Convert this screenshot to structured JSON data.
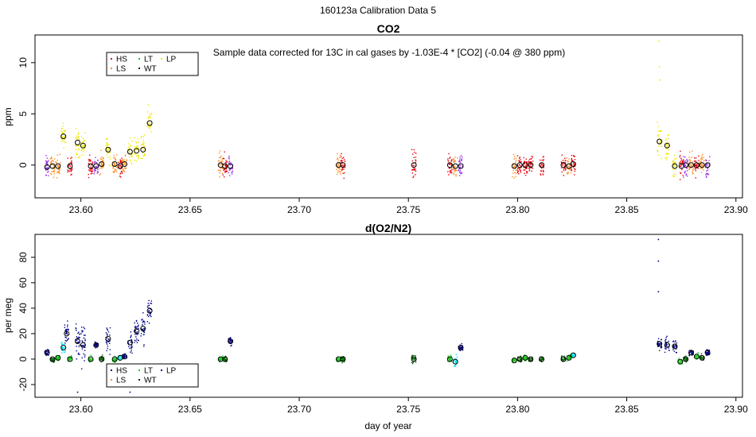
{
  "page_title": "160123a   Calibration Data 5",
  "colors": {
    "HS": "#e8000b",
    "LS": "#ff8c1a",
    "LT": "#1bcc1b",
    "WT": "#1f1f1f",
    "LP": "#f0e800",
    "purple": "#9b30e6",
    "navy": "#00008b",
    "cyan": "#00e5ee",
    "green_dark": "#006400"
  },
  "chart_data": [
    {
      "type": "scatter",
      "title": "CO2",
      "annotation": "Sample data corrected for 13C in cal gases by -1.03E-4 * [CO2] (-0.04 @ 380 ppm)",
      "xlabel": "",
      "ylabel": "ppm",
      "xlim": [
        23.579,
        23.903
      ],
      "ylim": [
        -3.2,
        12.7
      ],
      "xticks": [
        23.6,
        23.65,
        23.7,
        23.75,
        23.8,
        23.85,
        23.9
      ],
      "xtick_labels": [
        "23.60",
        "23.65",
        "23.70",
        "23.75",
        "23.80",
        "23.85",
        "23.90"
      ],
      "yticks": [
        0,
        5,
        10
      ],
      "ytick_labels": [
        "0",
        "5",
        "10"
      ],
      "legend": {
        "position": "top-left",
        "entries": [
          {
            "key": "HS",
            "label": "HS"
          },
          {
            "key": "LS",
            "label": "LS"
          },
          {
            "key": "LT",
            "label": "LT"
          },
          {
            "key": "WT",
            "label": "WT"
          },
          {
            "key": "LP",
            "label": "LP"
          }
        ]
      },
      "clusters": [
        {
          "x": 23.5845,
          "y": -0.2,
          "spread": 0.9,
          "color": "purple"
        },
        {
          "x": 23.587,
          "y": -0.1,
          "spread": 0.9,
          "color": "LS"
        },
        {
          "x": 23.5895,
          "y": -0.1,
          "spread": 0.9,
          "color": "LS"
        },
        {
          "x": 23.592,
          "y": 2.8,
          "spread": 1.0,
          "color": "LP"
        },
        {
          "x": 23.595,
          "y": -0.1,
          "spread": 0.9,
          "color": "HS"
        },
        {
          "x": 23.5985,
          "y": 2.2,
          "spread": 1.2,
          "color": "LP"
        },
        {
          "x": 23.601,
          "y": 1.9,
          "spread": 1.1,
          "color": "LP"
        },
        {
          "x": 23.6045,
          "y": -0.1,
          "spread": 0.9,
          "color": "HS"
        },
        {
          "x": 23.607,
          "y": -0.1,
          "spread": 0.9,
          "color": "purple"
        },
        {
          "x": 23.6095,
          "y": 0.1,
          "spread": 0.9,
          "color": "LS"
        },
        {
          "x": 23.6125,
          "y": 1.5,
          "spread": 1.1,
          "color": "LP"
        },
        {
          "x": 23.6155,
          "y": 0.1,
          "spread": 0.9,
          "color": "LS"
        },
        {
          "x": 23.618,
          "y": -0.1,
          "spread": 0.9,
          "color": "HS"
        },
        {
          "x": 23.62,
          "y": 0.1,
          "spread": 0.8,
          "color": "LS"
        },
        {
          "x": 23.6225,
          "y": 1.3,
          "spread": 1.1,
          "color": "LP"
        },
        {
          "x": 23.6255,
          "y": 1.4,
          "spread": 1.1,
          "color": "LP"
        },
        {
          "x": 23.6285,
          "y": 1.5,
          "spread": 1.1,
          "color": "LP"
        },
        {
          "x": 23.6315,
          "y": 4.1,
          "spread": 1.3,
          "color": "LP"
        },
        {
          "x": 23.664,
          "y": 0.0,
          "spread": 1.0,
          "color": "LS"
        },
        {
          "x": 23.666,
          "y": -0.1,
          "spread": 1.0,
          "color": "HS"
        },
        {
          "x": 23.6685,
          "y": -0.1,
          "spread": 0.9,
          "color": "purple"
        },
        {
          "x": 23.718,
          "y": 0.0,
          "spread": 0.9,
          "color": "LS"
        },
        {
          "x": 23.72,
          "y": 0.0,
          "spread": 1.0,
          "color": "HS"
        },
        {
          "x": 23.7525,
          "y": 0.0,
          "spread": 1.1,
          "color": "HS"
        },
        {
          "x": 23.769,
          "y": 0.0,
          "spread": 0.9,
          "color": "HS"
        },
        {
          "x": 23.7715,
          "y": -0.1,
          "spread": 0.9,
          "color": "LS"
        },
        {
          "x": 23.774,
          "y": -0.1,
          "spread": 0.9,
          "color": "purple"
        },
        {
          "x": 23.7985,
          "y": -0.1,
          "spread": 0.9,
          "color": "LS"
        },
        {
          "x": 23.801,
          "y": 0.0,
          "spread": 0.9,
          "color": "HS"
        },
        {
          "x": 23.8035,
          "y": 0.0,
          "spread": 0.9,
          "color": "HS"
        },
        {
          "x": 23.806,
          "y": 0.0,
          "spread": 0.9,
          "color": "HS"
        },
        {
          "x": 23.811,
          "y": 0.0,
          "spread": 1.0,
          "color": "HS"
        },
        {
          "x": 23.821,
          "y": 0.0,
          "spread": 0.9,
          "color": "HS"
        },
        {
          "x": 23.8235,
          "y": -0.1,
          "spread": 0.9,
          "color": "LS"
        },
        {
          "x": 23.8255,
          "y": 0.1,
          "spread": 0.9,
          "color": "HS"
        },
        {
          "x": 23.865,
          "y": 2.3,
          "spread": 1.5,
          "color": "LP"
        },
        {
          "x": 23.8685,
          "y": 1.9,
          "spread": 1.4,
          "color": "LP"
        },
        {
          "x": 23.872,
          "y": -0.1,
          "spread": 0.9,
          "color": "LP"
        },
        {
          "x": 23.875,
          "y": -0.1,
          "spread": 0.9,
          "color": "HS"
        },
        {
          "x": 23.877,
          "y": 0.0,
          "spread": 0.9,
          "color": "purple"
        },
        {
          "x": 23.8795,
          "y": 0.0,
          "spread": 0.9,
          "color": "LS"
        },
        {
          "x": 23.882,
          "y": 0.0,
          "spread": 0.9,
          "color": "HS"
        },
        {
          "x": 23.8845,
          "y": 0.0,
          "spread": 0.9,
          "color": "LS"
        },
        {
          "x": 23.887,
          "y": 0.0,
          "spread": 0.9,
          "color": "purple"
        }
      ],
      "outliers": [
        {
          "x": 23.8648,
          "y": 12.1,
          "color": "LP"
        },
        {
          "x": 23.865,
          "y": 9.6,
          "color": "LP"
        },
        {
          "x": 23.8652,
          "y": 8.3,
          "color": "LP"
        }
      ]
    },
    {
      "type": "scatter",
      "title": "d(O2/N2)",
      "xlabel": "day of year",
      "ylabel": "per meg",
      "xlim": [
        23.579,
        23.903
      ],
      "ylim": [
        -30,
        98
      ],
      "xticks": [
        23.6,
        23.65,
        23.7,
        23.75,
        23.8,
        23.85,
        23.9
      ],
      "xtick_labels": [
        "23.60",
        "23.65",
        "23.70",
        "23.75",
        "23.80",
        "23.85",
        "23.90"
      ],
      "yticks": [
        -20,
        0,
        20,
        40,
        60,
        80
      ],
      "ytick_labels": [
        "-20",
        "0",
        "20",
        "40",
        "60",
        "80"
      ],
      "legend": {
        "position": "bottom-left",
        "entries": [
          {
            "key": "HS",
            "label": "HS"
          },
          {
            "key": "LS",
            "label": "LS"
          },
          {
            "key": "LT",
            "label": "LT"
          },
          {
            "key": "WT",
            "label": "WT"
          },
          {
            "key": "LP",
            "label": "LP"
          }
        ]
      },
      "clusters": [
        {
          "x": 23.5845,
          "y": 5,
          "spread": 2,
          "color": "navy"
        },
        {
          "x": 23.587,
          "y": 0,
          "spread": 2,
          "color": "green_dark"
        },
        {
          "x": 23.5895,
          "y": 1,
          "spread": 2,
          "color": "LT"
        },
        {
          "x": 23.592,
          "y": 9,
          "spread": 4,
          "color": "cyan"
        },
        {
          "x": 23.5935,
          "y": 20,
          "spread": 9,
          "color": "navy"
        },
        {
          "x": 23.595,
          "y": 0,
          "spread": 2,
          "color": "LT"
        },
        {
          "x": 23.5985,
          "y": 14,
          "spread": 14,
          "color": "navy"
        },
        {
          "x": 23.601,
          "y": 11,
          "spread": 13,
          "color": "navy"
        },
        {
          "x": 23.6045,
          "y": 0,
          "spread": 2,
          "color": "LT"
        },
        {
          "x": 23.607,
          "y": 11,
          "spread": 2,
          "color": "navy"
        },
        {
          "x": 23.6095,
          "y": 0,
          "spread": 2,
          "color": "green_dark"
        },
        {
          "x": 23.6125,
          "y": 16,
          "spread": 9,
          "color": "navy"
        },
        {
          "x": 23.6155,
          "y": 0,
          "spread": 2,
          "color": "LT"
        },
        {
          "x": 23.618,
          "y": 1,
          "spread": 2,
          "color": "cyan"
        },
        {
          "x": 23.62,
          "y": 2,
          "spread": 2,
          "color": "navy"
        },
        {
          "x": 23.6225,
          "y": 13,
          "spread": 9,
          "color": "navy"
        },
        {
          "x": 23.6255,
          "y": 22,
          "spread": 9,
          "color": "navy"
        },
        {
          "x": 23.6285,
          "y": 24,
          "spread": 10,
          "color": "navy"
        },
        {
          "x": 23.6315,
          "y": 38,
          "spread": 8,
          "color": "navy"
        },
        {
          "x": 23.664,
          "y": 0,
          "spread": 2,
          "color": "LT"
        },
        {
          "x": 23.666,
          "y": 0,
          "spread": 2,
          "color": "green_dark"
        },
        {
          "x": 23.6685,
          "y": 14,
          "spread": 3,
          "color": "navy"
        },
        {
          "x": 23.718,
          "y": 0,
          "spread": 2,
          "color": "LT"
        },
        {
          "x": 23.72,
          "y": 0,
          "spread": 2,
          "color": "green_dark"
        },
        {
          "x": 23.7525,
          "y": 0,
          "spread": 3,
          "color": "green_dark"
        },
        {
          "x": 23.769,
          "y": 0,
          "spread": 2,
          "color": "LT"
        },
        {
          "x": 23.7715,
          "y": -2,
          "spread": 4,
          "color": "cyan"
        },
        {
          "x": 23.774,
          "y": 9,
          "spread": 2,
          "color": "navy"
        },
        {
          "x": 23.7985,
          "y": -1,
          "spread": 2,
          "color": "LT"
        },
        {
          "x": 23.801,
          "y": 0,
          "spread": 2,
          "color": "green_dark"
        },
        {
          "x": 23.8035,
          "y": 1,
          "spread": 2,
          "color": "LT"
        },
        {
          "x": 23.806,
          "y": 0,
          "spread": 2,
          "color": "green_dark"
        },
        {
          "x": 23.811,
          "y": 0,
          "spread": 2,
          "color": "green_dark"
        },
        {
          "x": 23.821,
          "y": 0,
          "spread": 2,
          "color": "green_dark"
        },
        {
          "x": 23.8235,
          "y": 1,
          "spread": 2,
          "color": "LT"
        },
        {
          "x": 23.8255,
          "y": 3,
          "spread": 2,
          "color": "cyan"
        },
        {
          "x": 23.865,
          "y": 12,
          "spread": 5,
          "color": "navy"
        },
        {
          "x": 23.8685,
          "y": 11,
          "spread": 5,
          "color": "navy"
        },
        {
          "x": 23.872,
          "y": 10,
          "spread": 4,
          "color": "navy"
        },
        {
          "x": 23.8745,
          "y": -2,
          "spread": 2,
          "color": "LT"
        },
        {
          "x": 23.877,
          "y": 0,
          "spread": 2,
          "color": "green_dark"
        },
        {
          "x": 23.8795,
          "y": 5,
          "spread": 2,
          "color": "navy"
        },
        {
          "x": 23.882,
          "y": 2,
          "spread": 2,
          "color": "LT"
        },
        {
          "x": 23.8845,
          "y": 1,
          "spread": 2,
          "color": "green_dark"
        },
        {
          "x": 23.887,
          "y": 5,
          "spread": 2,
          "color": "navy"
        }
      ],
      "outliers": [
        {
          "x": 23.8645,
          "y": 94,
          "color": "navy"
        },
        {
          "x": 23.8645,
          "y": 77,
          "color": "navy"
        },
        {
          "x": 23.8645,
          "y": 53,
          "color": "navy"
        },
        {
          "x": 23.5985,
          "y": -26,
          "color": "navy"
        },
        {
          "x": 23.6225,
          "y": -26,
          "color": "navy"
        }
      ]
    }
  ]
}
